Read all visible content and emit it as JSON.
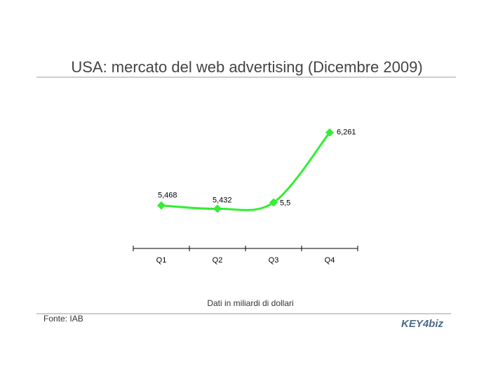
{
  "chart_data": {
    "type": "line",
    "title": "USA: mercato del web advertising (Dicembre 2009)",
    "categories": [
      "Q1",
      "Q2",
      "Q3",
      "Q4"
    ],
    "values": [
      5.468,
      5.432,
      5.5,
      6.261
    ],
    "value_labels": [
      "5,468",
      "5,432",
      "5,5",
      "6,261"
    ],
    "color": "#33ee33",
    "ylim": [
      5,
      6.5
    ],
    "note": "Dati in miliardi di dollari",
    "source": "Fonte: IAB",
    "logo": "KEY4biz"
  }
}
